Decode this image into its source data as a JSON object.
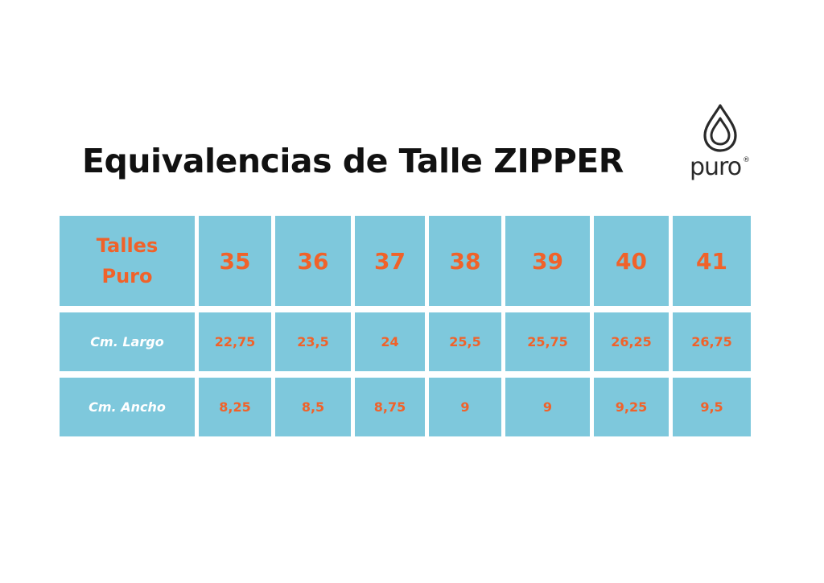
{
  "title": "Equivalencias de Talle ZIPPER",
  "logo": {
    "text": "puro",
    "mark": "®",
    "icon": "water-drop-icon"
  },
  "colors": {
    "cell_background": "#7ec8dc",
    "value_text": "#f0622a",
    "label_text": "#ffffff",
    "title_text": "#111111"
  },
  "table": {
    "header_label_line1": "Talles",
    "header_label_line2": "Puro",
    "sizes": [
      "35",
      "36",
      "37",
      "38",
      "39",
      "40",
      "41"
    ],
    "rows": [
      {
        "label": "Cm. Largo",
        "values": [
          "22,75",
          "23,5",
          "24",
          "25,5",
          "25,75",
          "26,25",
          "26,75"
        ]
      },
      {
        "label": "Cm. Ancho",
        "values": [
          "8,25",
          "8,5",
          "8,75",
          "9",
          "9",
          "9,25",
          "9,5"
        ]
      }
    ]
  }
}
